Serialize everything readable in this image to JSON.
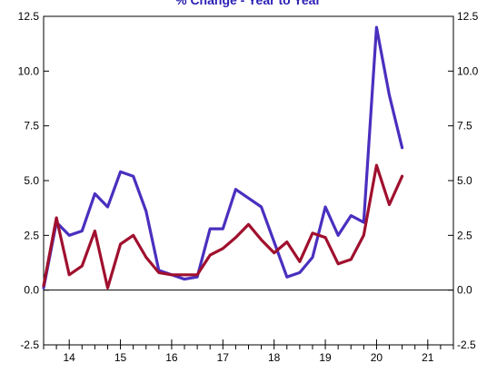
{
  "chart_data": {
    "type": "line",
    "title": "% Change - Year to Year",
    "xlabel": "",
    "ylabel": "",
    "ylim": [
      -2.5,
      12.5
    ],
    "xlim": [
      13.5,
      21.5
    ],
    "grid": false,
    "dual_y_axis_labels": true,
    "y_ticks": [
      "-2.5",
      "0.0",
      "2.5",
      "5.0",
      "7.5",
      "10.0",
      "12.5"
    ],
    "y_tick_values": [
      -2.5,
      0.0,
      2.5,
      5.0,
      7.5,
      10.0,
      12.5
    ],
    "x_tick_labels": [
      "14",
      "15",
      "16",
      "17",
      "18",
      "19",
      "20",
      "21"
    ],
    "x_tick_values": [
      14,
      15,
      16,
      17,
      18,
      19,
      20,
      21
    ],
    "colors": {
      "series_blue": "#4a2fbf",
      "series_red": "#a0102e",
      "title": "#2a1fb4"
    },
    "series": [
      {
        "color": "#4a2fbf",
        "points": [
          [
            13.5,
            0.1
          ],
          [
            13.75,
            3.1
          ],
          [
            14.0,
            2.5
          ],
          [
            14.25,
            2.7
          ],
          [
            14.5,
            4.4
          ],
          [
            14.75,
            3.8
          ],
          [
            15.0,
            5.4
          ],
          [
            15.25,
            5.2
          ],
          [
            15.5,
            3.6
          ],
          [
            15.75,
            0.9
          ],
          [
            16.0,
            0.7
          ],
          [
            16.25,
            0.5
          ],
          [
            16.5,
            0.6
          ],
          [
            16.75,
            2.8
          ],
          [
            17.0,
            2.8
          ],
          [
            17.25,
            4.6
          ],
          [
            17.5,
            4.2
          ],
          [
            17.75,
            3.8
          ],
          [
            18.0,
            2.2
          ],
          [
            18.25,
            0.6
          ],
          [
            18.5,
            0.8
          ],
          [
            18.75,
            1.5
          ],
          [
            19.0,
            3.8
          ],
          [
            19.25,
            2.5
          ],
          [
            19.5,
            3.4
          ],
          [
            19.75,
            3.1
          ],
          [
            20.0,
            12.0
          ],
          [
            20.25,
            8.9
          ],
          [
            20.5,
            6.5
          ]
        ]
      },
      {
        "color": "#a0102e",
        "points": [
          [
            13.5,
            0.2
          ],
          [
            13.75,
            3.3
          ],
          [
            14.0,
            0.7
          ],
          [
            14.25,
            1.1
          ],
          [
            14.5,
            2.7
          ],
          [
            14.75,
            0.1
          ],
          [
            15.0,
            2.1
          ],
          [
            15.25,
            2.5
          ],
          [
            15.5,
            1.5
          ],
          [
            15.75,
            0.8
          ],
          [
            16.0,
            0.7
          ],
          [
            16.25,
            0.7
          ],
          [
            16.5,
            0.7
          ],
          [
            16.75,
            1.6
          ],
          [
            17.0,
            1.9
          ],
          [
            17.25,
            2.4
          ],
          [
            17.5,
            3.0
          ],
          [
            17.75,
            2.3
          ],
          [
            18.0,
            1.7
          ],
          [
            18.25,
            2.2
          ],
          [
            18.5,
            1.3
          ],
          [
            18.75,
            2.6
          ],
          [
            19.0,
            2.4
          ],
          [
            19.25,
            1.2
          ],
          [
            19.5,
            1.4
          ],
          [
            19.75,
            2.5
          ],
          [
            20.0,
            5.7
          ],
          [
            20.25,
            3.9
          ],
          [
            20.5,
            5.2
          ]
        ]
      }
    ]
  }
}
